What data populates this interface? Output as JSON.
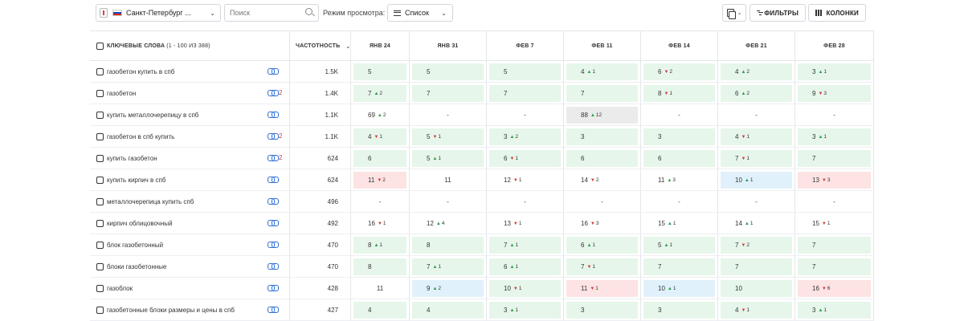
{
  "toolbar": {
    "region": "Санкт-Петербург ...",
    "search_placeholder": "Поиск",
    "view_label": "Режим просмотра:",
    "view_value": "Список",
    "filters_label": "ФИЛЬТРЫ",
    "columns_label": "КОЛОНКИ"
  },
  "table": {
    "keyword_header": "КЛЮЧЕВЫЕ СЛОВА",
    "keyword_range": "(1 - 100 ИЗ 388)",
    "frequency_header": "ЧАСТОТНОСТЬ",
    "dates": [
      "ЯНВ 24",
      "ЯНВ 31",
      "ФЕВ 7",
      "ФЕВ 11",
      "ФЕВ 14",
      "ФЕВ 21",
      "ФЕВ 28"
    ],
    "rows": [
      {
        "keyword": "газобетон купить в спб",
        "links": "",
        "freq": "1.5K",
        "cells": [
          {
            "v": "5",
            "bg": "green"
          },
          {
            "v": "5",
            "bg": "green"
          },
          {
            "v": "5",
            "bg": "green"
          },
          {
            "v": "4",
            "d": "up",
            "c": "1",
            "bg": "green"
          },
          {
            "v": "6",
            "d": "down",
            "c": "2",
            "bg": "green"
          },
          {
            "v": "4",
            "d": "up",
            "c": "2",
            "bg": "green"
          },
          {
            "v": "3",
            "d": "up",
            "c": "1",
            "bg": "green"
          }
        ]
      },
      {
        "keyword": "газобетон",
        "links": "2",
        "freq": "1.4K",
        "cells": [
          {
            "v": "7",
            "d": "up",
            "c": "2",
            "bg": "green"
          },
          {
            "v": "7",
            "bg": "green"
          },
          {
            "v": "7",
            "bg": "green"
          },
          {
            "v": "7",
            "bg": "green"
          },
          {
            "v": "8",
            "d": "down",
            "c": "1",
            "bg": "green"
          },
          {
            "v": "6",
            "d": "up",
            "c": "2",
            "bg": "green"
          },
          {
            "v": "9",
            "d": "down",
            "c": "3",
            "bg": "green"
          }
        ]
      },
      {
        "keyword": "купить металлочерепицу в спб",
        "links": "",
        "freq": "1.1K",
        "cells": [
          {
            "v": "69",
            "d": "up",
            "c": "2",
            "bg": ""
          },
          {
            "v": "-",
            "bg": ""
          },
          {
            "v": "-",
            "bg": ""
          },
          {
            "v": "88",
            "d": "up",
            "c": "12",
            "bg": "gray"
          },
          {
            "v": "-",
            "bg": ""
          },
          {
            "v": "-",
            "bg": ""
          },
          {
            "v": "-",
            "bg": ""
          }
        ]
      },
      {
        "keyword": "газобетон в спб купить",
        "links": "2",
        "freq": "1.1K",
        "cells": [
          {
            "v": "4",
            "d": "down",
            "c": "1",
            "bg": "green"
          },
          {
            "v": "5",
            "d": "down",
            "c": "1",
            "bg": "green"
          },
          {
            "v": "3",
            "d": "up",
            "c": "2",
            "bg": "green"
          },
          {
            "v": "3",
            "bg": "green"
          },
          {
            "v": "3",
            "bg": "green"
          },
          {
            "v": "4",
            "d": "down",
            "c": "1",
            "bg": "green"
          },
          {
            "v": "3",
            "d": "up",
            "c": "1",
            "bg": "green"
          }
        ]
      },
      {
        "keyword": "купить газобетон",
        "links": "2",
        "freq": "624",
        "cells": [
          {
            "v": "6",
            "bg": "green"
          },
          {
            "v": "5",
            "d": "up",
            "c": "1",
            "bg": "green"
          },
          {
            "v": "6",
            "d": "down",
            "c": "1",
            "bg": "green"
          },
          {
            "v": "6",
            "bg": "green"
          },
          {
            "v": "6",
            "bg": "green"
          },
          {
            "v": "7",
            "d": "down",
            "c": "1",
            "bg": "green"
          },
          {
            "v": "7",
            "bg": "green"
          }
        ]
      },
      {
        "keyword": "купить кирпич в спб",
        "links": "",
        "freq": "624",
        "cells": [
          {
            "v": "11",
            "d": "down",
            "c": "2",
            "bg": "red"
          },
          {
            "v": "11",
            "bg": ""
          },
          {
            "v": "12",
            "d": "down",
            "c": "1",
            "bg": ""
          },
          {
            "v": "14",
            "d": "down",
            "c": "2",
            "bg": ""
          },
          {
            "v": "11",
            "d": "up",
            "c": "3",
            "bg": ""
          },
          {
            "v": "10",
            "d": "up",
            "c": "1",
            "bg": "blue"
          },
          {
            "v": "13",
            "d": "down",
            "c": "3",
            "bg": "red"
          }
        ]
      },
      {
        "keyword": "металлочерепица купить спб",
        "links": "",
        "freq": "496",
        "cells": [
          {
            "v": "-",
            "bg": ""
          },
          {
            "v": "-",
            "bg": ""
          },
          {
            "v": "-",
            "bg": ""
          },
          {
            "v": "-",
            "bg": ""
          },
          {
            "v": "-",
            "bg": ""
          },
          {
            "v": "-",
            "bg": ""
          },
          {
            "v": "-",
            "bg": ""
          }
        ]
      },
      {
        "keyword": "кирпич облицовочный",
        "links": "",
        "freq": "492",
        "cells": [
          {
            "v": "16",
            "d": "down",
            "c": "1",
            "bg": ""
          },
          {
            "v": "12",
            "d": "up",
            "c": "4",
            "bg": ""
          },
          {
            "v": "13",
            "d": "down",
            "c": "1",
            "bg": ""
          },
          {
            "v": "16",
            "d": "down",
            "c": "3",
            "bg": ""
          },
          {
            "v": "15",
            "d": "up",
            "c": "1",
            "bg": ""
          },
          {
            "v": "14",
            "d": "up",
            "c": "1",
            "bg": ""
          },
          {
            "v": "15",
            "d": "down",
            "c": "1",
            "bg": ""
          }
        ]
      },
      {
        "keyword": "блок газобетонный",
        "links": "",
        "freq": "470",
        "cells": [
          {
            "v": "8",
            "d": "up",
            "c": "1",
            "bg": "green"
          },
          {
            "v": "8",
            "bg": "green"
          },
          {
            "v": "7",
            "d": "up",
            "c": "1",
            "bg": "green"
          },
          {
            "v": "6",
            "d": "up",
            "c": "1",
            "bg": "green"
          },
          {
            "v": "5",
            "d": "up",
            "c": "1",
            "bg": "green"
          },
          {
            "v": "7",
            "d": "down",
            "c": "2",
            "bg": "green"
          },
          {
            "v": "7",
            "bg": "green"
          }
        ]
      },
      {
        "keyword": "блоки газобетонные",
        "links": "",
        "freq": "470",
        "cells": [
          {
            "v": "8",
            "bg": "green"
          },
          {
            "v": "7",
            "d": "up",
            "c": "1",
            "bg": "green"
          },
          {
            "v": "6",
            "d": "up",
            "c": "1",
            "bg": "green"
          },
          {
            "v": "7",
            "d": "down",
            "c": "1",
            "bg": "green"
          },
          {
            "v": "7",
            "bg": "green"
          },
          {
            "v": "7",
            "bg": "green"
          },
          {
            "v": "7",
            "bg": "green"
          }
        ]
      },
      {
        "keyword": "газоблок",
        "links": "",
        "freq": "428",
        "cells": [
          {
            "v": "11",
            "bg": ""
          },
          {
            "v": "9",
            "d": "up",
            "c": "2",
            "bg": "blue"
          },
          {
            "v": "10",
            "d": "down",
            "c": "1",
            "bg": "green"
          },
          {
            "v": "11",
            "d": "down",
            "c": "1",
            "bg": "red"
          },
          {
            "v": "10",
            "d": "up",
            "c": "1",
            "bg": "blue"
          },
          {
            "v": "10",
            "bg": "green"
          },
          {
            "v": "16",
            "d": "down",
            "c": "6",
            "bg": "red"
          }
        ]
      },
      {
        "keyword": "газобетонные блоки размеры и цены в спб",
        "links": "",
        "freq": "427",
        "cells": [
          {
            "v": "4",
            "bg": "green"
          },
          {
            "v": "4",
            "bg": "green"
          },
          {
            "v": "3",
            "d": "up",
            "c": "1",
            "bg": "green"
          },
          {
            "v": "3",
            "bg": "green"
          },
          {
            "v": "3",
            "bg": "green"
          },
          {
            "v": "4",
            "d": "down",
            "c": "1",
            "bg": "green"
          },
          {
            "v": "3",
            "d": "up",
            "c": "1",
            "bg": "green"
          }
        ]
      }
    ]
  }
}
